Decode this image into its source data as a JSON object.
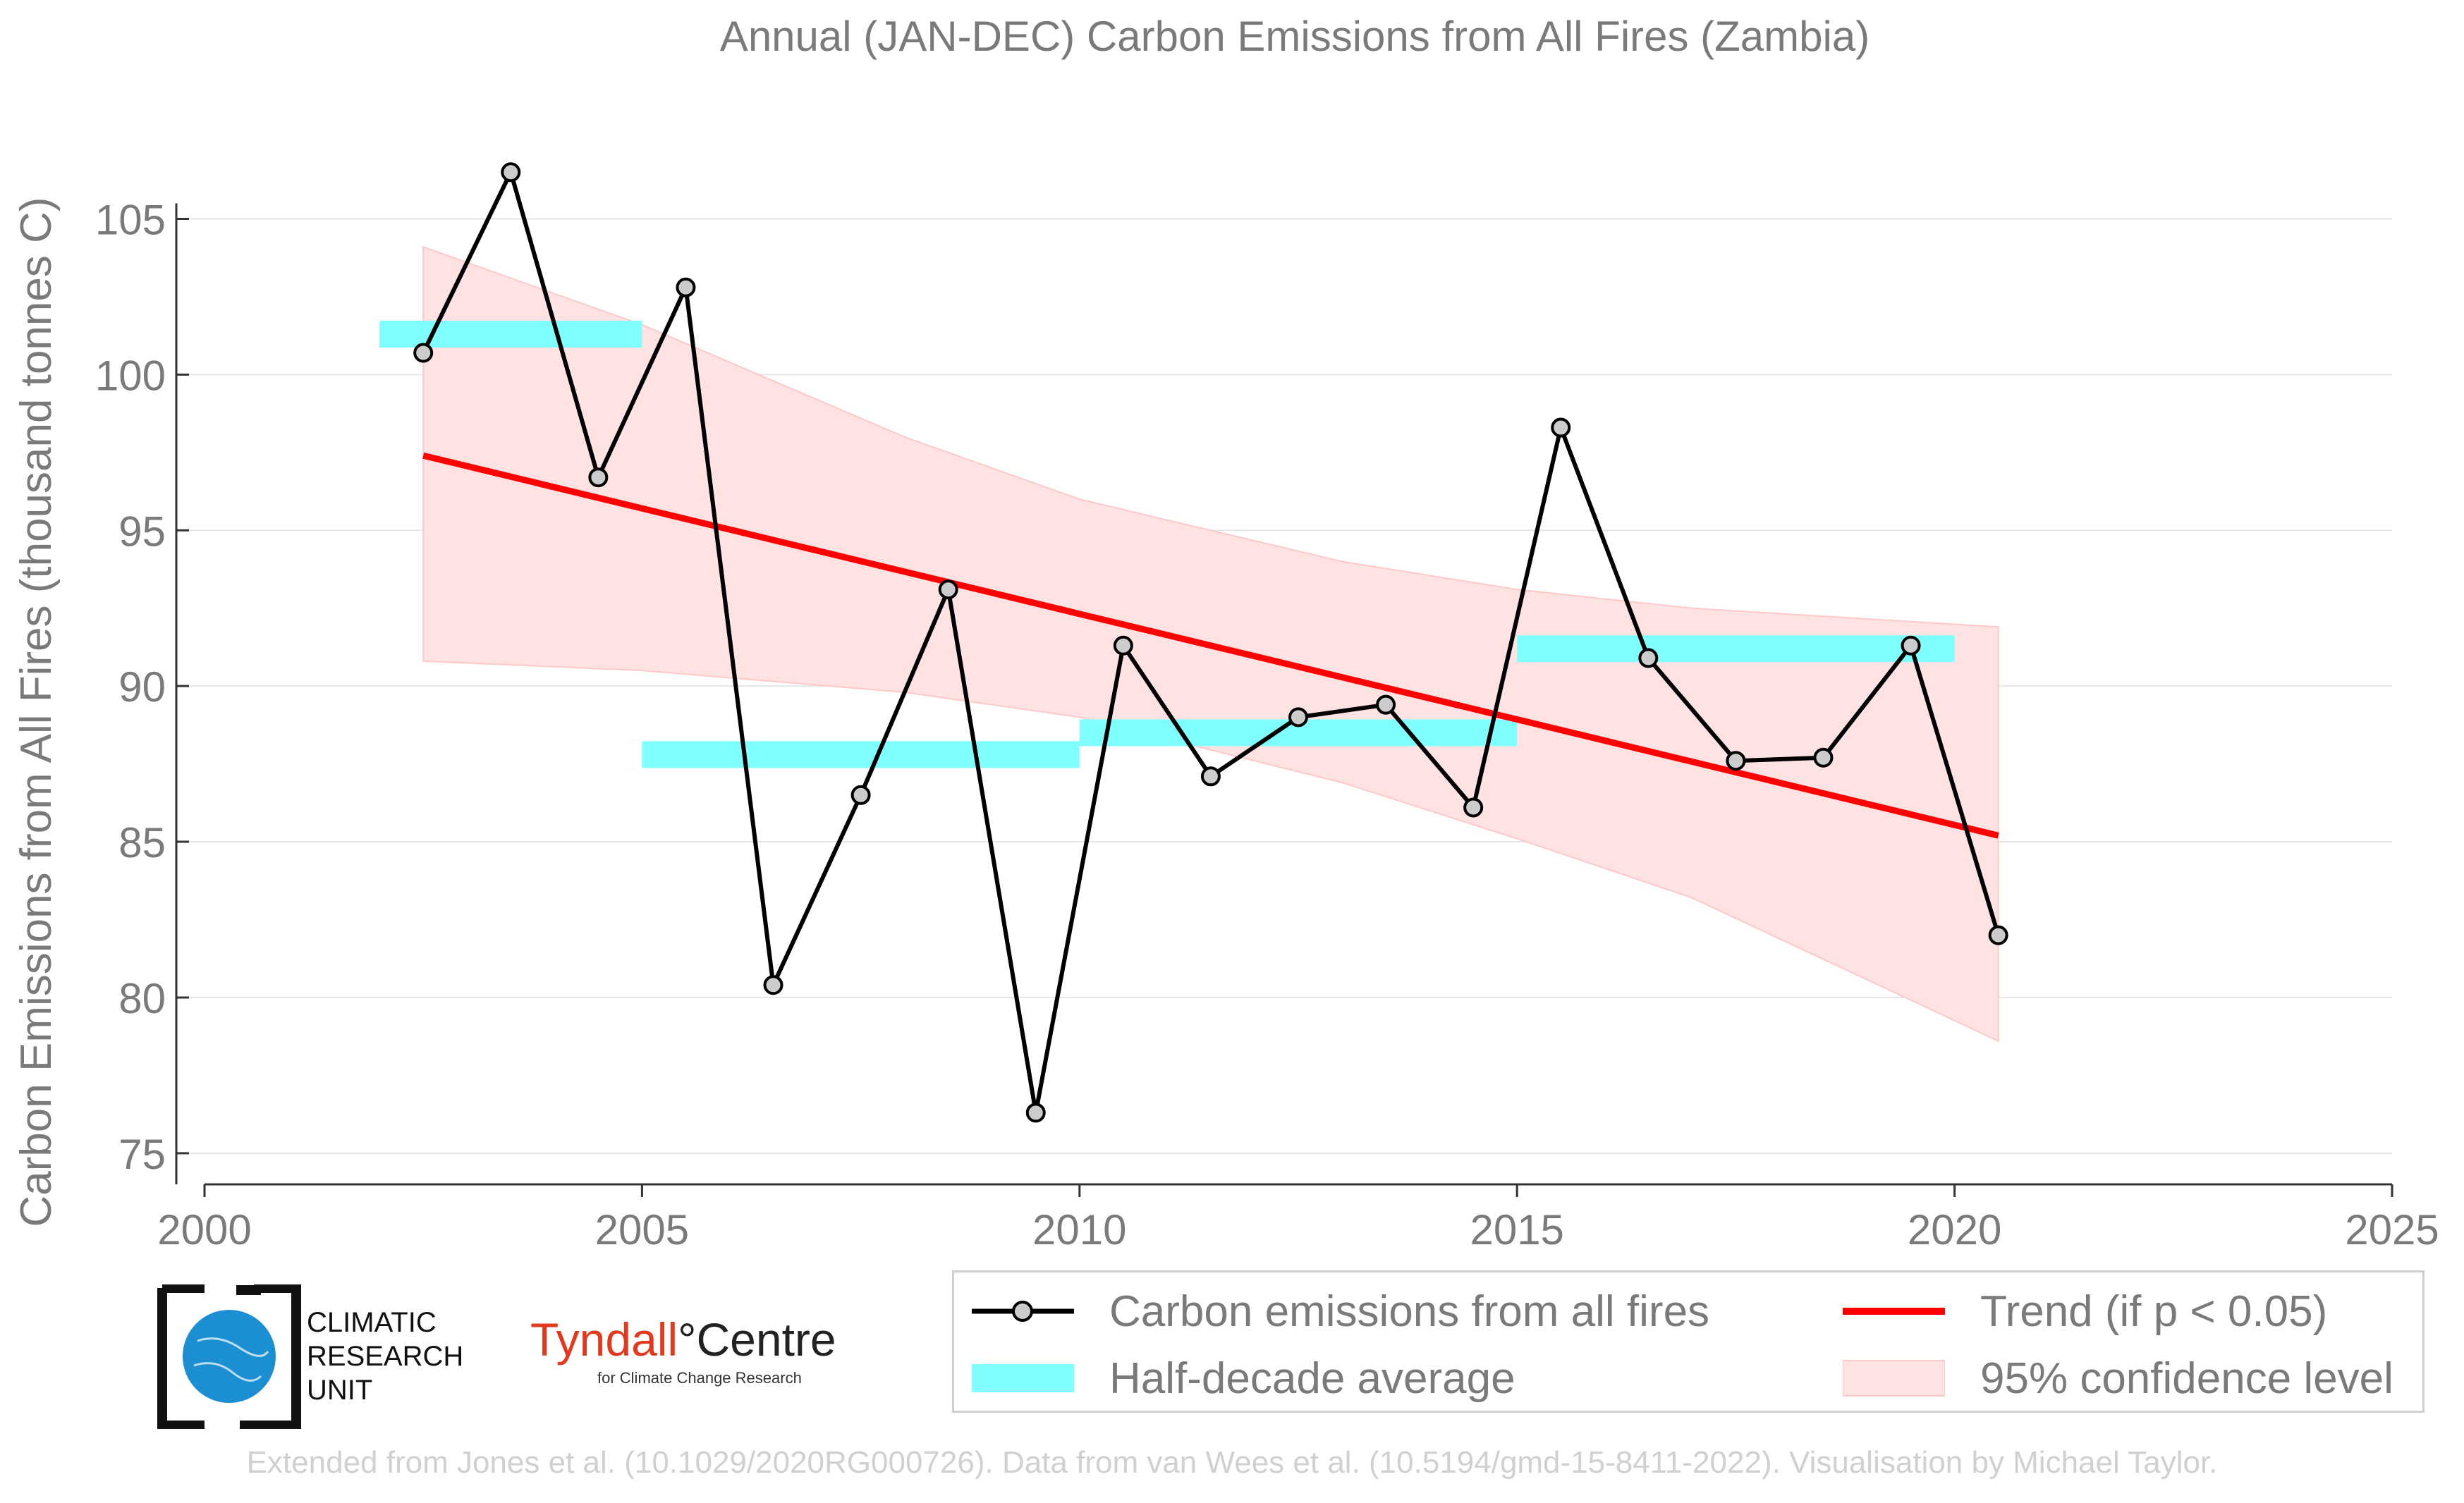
{
  "chart_data": {
    "type": "line",
    "title": "Annual (JAN-DEC) Carbon Emissions from All Fires (Zambia)",
    "xlabel": "",
    "ylabel": "Carbon Emissions from All Fires (thousand tonnes C)",
    "xlim": [
      2000,
      2025
    ],
    "ylim": [
      74,
      108
    ],
    "x_ticks": [
      "2000",
      "2005",
      "2010",
      "2015",
      "2020",
      "2025"
    ],
    "y_ticks": [
      "75",
      "80",
      "85",
      "90",
      "95",
      "100",
      "105"
    ],
    "grid": "horizontal",
    "series": [
      {
        "name": "Carbon emissions from all fires",
        "color": "#000000",
        "x": [
          2002.5,
          2003.5,
          2004.5,
          2005.5,
          2006.5,
          2007.5,
          2008.5,
          2009.5,
          2010.5,
          2011.5,
          2012.5,
          2013.5,
          2014.5,
          2015.5,
          2016.5,
          2017.5,
          2018.5,
          2019.5,
          2020.5
        ],
        "y": [
          100.7,
          106.5,
          96.7,
          102.8,
          80.4,
          86.5,
          93.1,
          76.3,
          91.3,
          87.1,
          89.0,
          89.4,
          86.1,
          98.3,
          90.9,
          87.6,
          87.7,
          91.3,
          82.0
        ]
      },
      {
        "name": "Half-decade average",
        "color": "#7fffff",
        "segments": [
          {
            "x": [
              2002.0,
              2005.0
            ],
            "y": 101.3
          },
          {
            "x": [
              2005.0,
              2010.0
            ],
            "y": 87.8
          },
          {
            "x": [
              2010.0,
              2015.0
            ],
            "y": 88.5
          },
          {
            "x": [
              2015.0,
              2020.0
            ],
            "y": 91.2
          }
        ]
      },
      {
        "name": "Trend (if p < 0.05)",
        "color": "#ff0000",
        "x": [
          2002.5,
          2020.5
        ],
        "y": [
          97.4,
          85.2
        ]
      },
      {
        "name": "95% confidence level",
        "color": "#ffe2e2",
        "x": [
          2002.5,
          2005,
          2008,
          2010,
          2013,
          2015,
          2017,
          2020.5
        ],
        "upper": [
          104.1,
          101.6,
          98.0,
          96.0,
          94.0,
          93.1,
          92.5,
          91.9
        ],
        "lower": [
          90.8,
          90.5,
          89.8,
          89.0,
          86.9,
          85.1,
          83.2,
          78.6
        ]
      }
    ],
    "legend_position": "bottom-right"
  },
  "legend": {
    "items": [
      {
        "label": "Carbon emissions from all fires"
      },
      {
        "label": "Trend (if p < 0.05)"
      },
      {
        "label": "Half-decade average"
      },
      {
        "label": "95% confidence level"
      }
    ]
  },
  "logos": {
    "cru": "CLIMATIC RESEARCH UNIT",
    "tyndall_main": "Tyndall",
    "tyndall_centre": "°Centre",
    "tyndall_sub": "for Climate Change Research"
  },
  "credit": "Extended from Jones et al. (10.1029/2020RG000726). Data from van Wees et al. (10.5194/gmd-15-8411-2022). Visualisation by Michael Taylor."
}
